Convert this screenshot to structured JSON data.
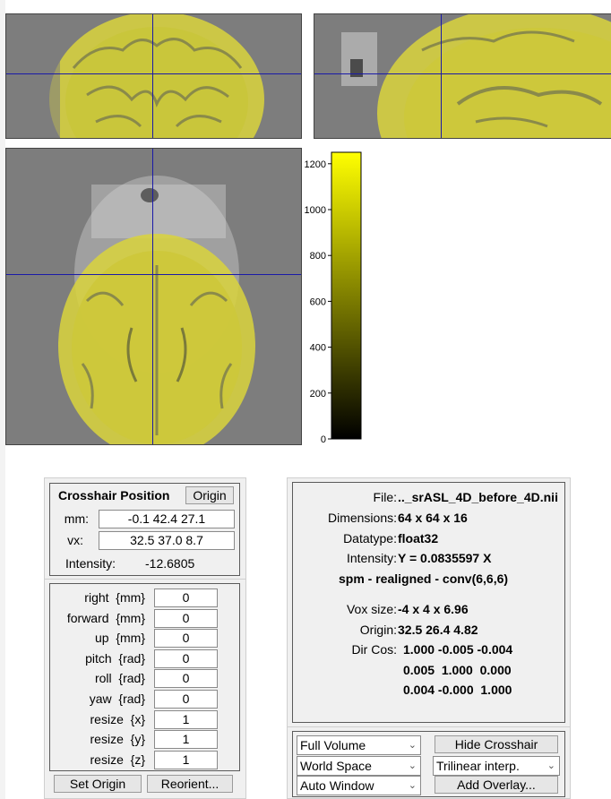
{
  "crosshair": {
    "title": "Crosshair Position",
    "origin_button": "Origin",
    "mm_label": "mm:",
    "mm_value": "-0.1 42.4 27.1",
    "vx_label": "vx:",
    "vx_value": "32.5 37.0 8.7",
    "intensity_label": "Intensity:",
    "intensity_value": "-12.6805"
  },
  "reorient": {
    "fields": [
      {
        "label": "right  {mm}",
        "value": "0"
      },
      {
        "label": "forward  {mm}",
        "value": "0"
      },
      {
        "label": "up  {mm}",
        "value": "0"
      },
      {
        "label": "pitch  {rad}",
        "value": "0"
      },
      {
        "label": "roll  {rad}",
        "value": "0"
      },
      {
        "label": "yaw  {rad}",
        "value": "0"
      },
      {
        "label": "resize  {x}",
        "value": "1"
      },
      {
        "label": "resize  {y}",
        "value": "1"
      },
      {
        "label": "resize  {z}",
        "value": "1"
      }
    ],
    "set_origin_button": "Set Origin",
    "reorient_button": "Reorient..."
  },
  "info": {
    "file_label": "File:",
    "file_value": ".._srASL_4D_before_4D.nii",
    "dimensions_label": "Dimensions:",
    "dimensions_value": "64 x 64 x 16",
    "datatype_label": "Datatype:",
    "datatype_value": "float32",
    "intensity_label": "Intensity:",
    "intensity_value": "Y = 0.0835597 X",
    "description": "spm - realigned - conv(6,6,6)",
    "voxsize_label": "Vox size:",
    "voxsize_value": "-4 x 4 x 6.96",
    "origin_label": "Origin:",
    "origin_value": "32.5 26.4 4.82",
    "dircos_label": "Dir Cos:",
    "dircos_rows": [
      "1.000 -0.005 -0.004",
      "0.005  1.000  0.000",
      "0.004 -0.000  1.000"
    ]
  },
  "controls": {
    "volume_select": "Full Volume",
    "space_select": "World Space",
    "window_select": "Auto Window",
    "hide_crosshair_button": "Hide Crosshair",
    "interp_select": "Trilinear interp.",
    "add_overlay_button": "Add Overlay..."
  },
  "colorbar": {
    "ticks": [
      "1200",
      "1000",
      "800",
      "600",
      "400",
      "200",
      "0"
    ],
    "min": 0,
    "max": 1250,
    "colormap": [
      "#000000",
      "#ffff00"
    ]
  },
  "colors": {
    "crosshair": "#1a1aa8",
    "background_view": "#7d7d7d",
    "overlay": "#d7d23a"
  }
}
